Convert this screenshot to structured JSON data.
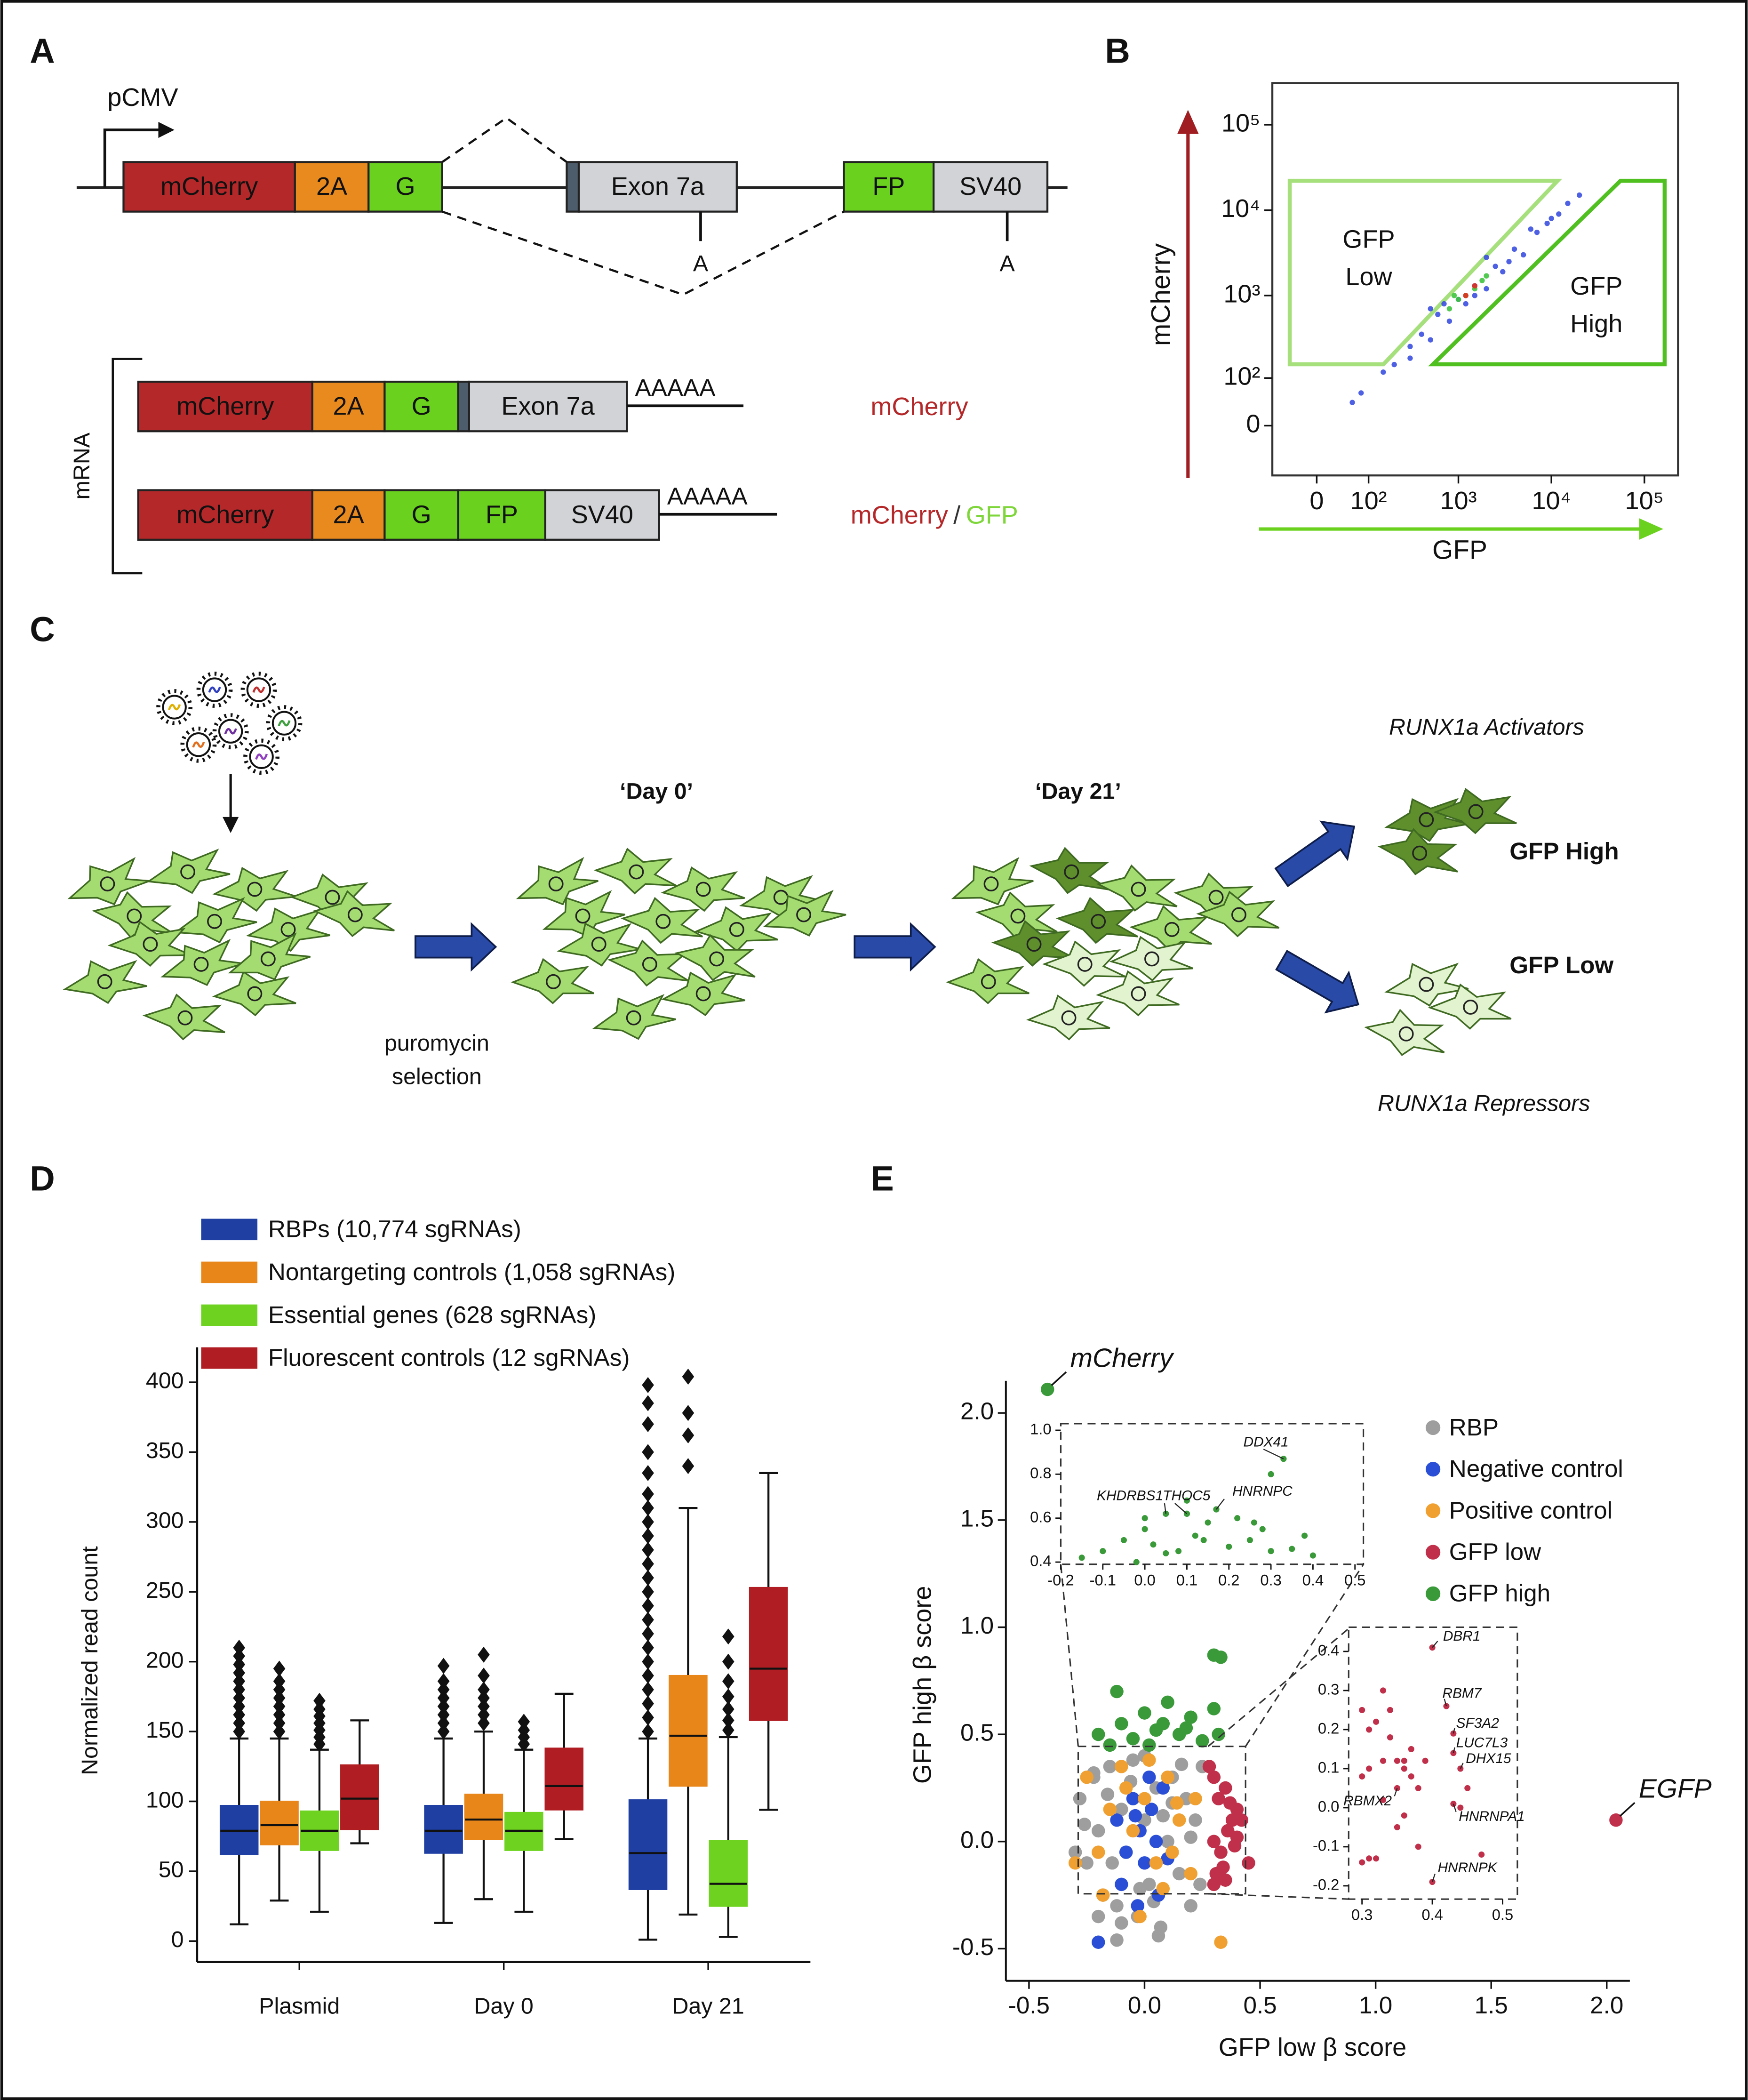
{
  "panel_labels": {
    "a": "A",
    "b": "B",
    "c": "C",
    "d": "D",
    "e": "E"
  },
  "construct": {
    "promoter": "pCMV",
    "segments": {
      "mcherry": "mCherry",
      "p2a": "2A",
      "g": "G",
      "exon": "Exon 7a",
      "fp": "FP",
      "sv40": "SV40"
    },
    "polya_sites": [
      "A",
      "A"
    ],
    "mrna_label": "mRNA",
    "isoforms": [
      {
        "segments": [
          "mCherry",
          "2A",
          "G",
          "Exon 7a"
        ],
        "tail": "AAAAA",
        "readout": [
          "mCherry"
        ]
      },
      {
        "segments": [
          "mCherry",
          "2A",
          "G",
          "FP",
          "SV40"
        ],
        "tail": "AAAAA",
        "readout": [
          "mCherry",
          "/",
          "GFP"
        ]
      }
    ]
  },
  "screen": {
    "day0": "‘Day 0’",
    "day21": "‘Day 21’",
    "selection": [
      "puromycin",
      "selection"
    ],
    "activators": "RUNX1a Activators",
    "gfp_high": "GFP High",
    "gfp_low": "GFP Low",
    "repressors": "RUNX1a Repressors"
  },
  "chart_data": [
    {
      "type": "scatter",
      "scale": "asinh",
      "xlabel": "GFP",
      "ylabel": "mCherry",
      "xlim": [
        -80,
        230000
      ],
      "ylim": [
        -107,
        308000
      ],
      "xticks": [
        0,
        {
          "value": 100,
          "label": "10²"
        },
        {
          "value": 1000,
          "label": "10³"
        },
        {
          "value": 10000,
          "label": "10⁴"
        },
        {
          "value": 100000,
          "label": "10⁵"
        }
      ],
      "yticks": [
        0,
        {
          "value": 100,
          "label": "10²"
        },
        {
          "value": 1000,
          "label": "10³"
        },
        {
          "value": 10000,
          "label": "10⁴"
        },
        {
          "value": 100000,
          "label": "10⁵"
        }
      ],
      "gates": [
        {
          "label": [
            "GFP",
            "Low"
          ]
        },
        {
          "label": [
            "GFP",
            "High"
          ]
        }
      ],
      "series": [
        {
          "color": "#3b4fe0",
          "x": [
            80,
            150,
            200,
            300,
            400,
            500,
            600,
            800,
            1000,
            1200,
            1500,
            2000,
            2500,
            3000,
            4000,
            5000,
            7000,
            9000,
            12000,
            15000,
            20000,
            300,
            700,
            1500,
            3500,
            6000,
            60,
            2000,
            500,
            10000
          ],
          "y": [
            60,
            120,
            150,
            250,
            350,
            300,
            600,
            500,
            900,
            800,
            1300,
            1200,
            2200,
            1900,
            3500,
            3000,
            5500,
            7000,
            9000,
            12000,
            15000,
            180,
            800,
            1000,
            2500,
            6000,
            40,
            2800,
            700,
            8000
          ]
        },
        {
          "color": "#3fc43f",
          "x": [
            800,
            1000,
            1200,
            1500,
            2000,
            900,
            1800
          ],
          "y": [
            700,
            900,
            1000,
            1200,
            1700,
            1000,
            1500
          ]
        },
        {
          "color": "#e0301e",
          "x": [
            1200,
            1500
          ],
          "y": [
            1000,
            1300
          ]
        }
      ]
    },
    {
      "type": "box",
      "ylabel": "Normalized read count",
      "categories": [
        "Plasmid",
        "Day 0",
        "Day 21"
      ],
      "ylim": [
        -15,
        425
      ],
      "yticks": [
        0,
        50,
        100,
        150,
        200,
        250,
        300,
        350,
        400
      ],
      "series": [
        {
          "name": "RBPs (10,774 sgRNAs)",
          "color": "#1f3fa3",
          "boxes": [
            {
              "whislo": 12,
              "q1": 62,
              "med": 79,
              "q3": 97,
              "whishi": 145,
              "fliers": [
                150,
                156,
                162,
                168,
                174,
                180,
                186,
                192,
                198,
                204,
                210
              ]
            },
            {
              "whislo": 13,
              "q1": 63,
              "med": 79,
              "q3": 97,
              "whishi": 145,
              "fliers": [
                150,
                156,
                162,
                168,
                174,
                180,
                186,
                197
              ]
            },
            {
              "whislo": 1,
              "q1": 37,
              "med": 63,
              "q3": 101,
              "whishi": 145,
              "fliers": [
                150,
                160,
                170,
                180,
                190,
                200,
                210,
                220,
                230,
                240,
                250,
                260,
                270,
                280,
                290,
                300,
                310,
                320,
                335,
                350,
                370,
                385,
                398
              ]
            }
          ]
        },
        {
          "name": "Nontargeting controls (1,058 sgRNAs)",
          "color": "#e8861a",
          "boxes": [
            {
              "whislo": 29,
              "q1": 69,
              "med": 83,
              "q3": 100,
              "whishi": 145,
              "fliers": [
                150,
                156,
                162,
                168,
                174,
                180,
                186,
                195
              ]
            },
            {
              "whislo": 30,
              "q1": 73,
              "med": 87,
              "q3": 105,
              "whishi": 150,
              "fliers": [
                156,
                162,
                168,
                174,
                180,
                190,
                205
              ]
            },
            {
              "whislo": 19,
              "q1": 111,
              "med": 147,
              "q3": 190,
              "whishi": 310,
              "fliers": [
                340,
                362,
                378,
                404
              ]
            }
          ]
        },
        {
          "name": "Essential genes (628 sgRNAs)",
          "color": "#6ed320",
          "boxes": [
            {
              "whislo": 21,
              "q1": 65,
              "med": 79,
              "q3": 93,
              "whishi": 137,
              "fliers": [
                141,
                146,
                151,
                156,
                161,
                166,
                172
              ]
            },
            {
              "whislo": 21,
              "q1": 65,
              "med": 79,
              "q3": 92,
              "whishi": 137,
              "fliers": [
                141,
                146,
                151,
                157
              ]
            },
            {
              "whislo": 3,
              "q1": 25,
              "med": 41,
              "q3": 72,
              "whishi": 146,
              "fliers": [
                151,
                158,
                166,
                175,
                186,
                200,
                218
              ]
            }
          ]
        },
        {
          "name": "Fluorescent controls (12 sgRNAs)",
          "color": "#b01e23",
          "boxes": [
            {
              "whislo": 70,
              "q1": 80,
              "med": 102,
              "q3": 126,
              "whishi": 158,
              "fliers": []
            },
            {
              "whislo": 73,
              "q1": 94,
              "med": 111,
              "q3": 138,
              "whishi": 177,
              "fliers": []
            },
            {
              "whislo": 94,
              "q1": 158,
              "med": 195,
              "q3": 253,
              "whishi": 335,
              "fliers": []
            }
          ]
        }
      ]
    },
    {
      "type": "scatter",
      "xlabel": "GFP low β score",
      "ylabel": "GFP high β score",
      "xlim": [
        -0.6,
        2.1
      ],
      "ylim": [
        -0.65,
        2.15
      ],
      "xticks": [
        -0.5,
        {
          "value": 0,
          "label": "0.0"
        },
        0.5,
        {
          "value": 1,
          "label": "1.0"
        },
        1.5,
        {
          "value": 2,
          "label": "2.0"
        }
      ],
      "yticks": [
        -0.5,
        {
          "value": 0,
          "label": "0.0"
        },
        0.5,
        {
          "value": 1,
          "label": "1.0"
        },
        1.5,
        {
          "value": 2,
          "label": "2.0"
        }
      ],
      "annotations": [
        {
          "text": "mCherry",
          "x": -0.42,
          "y": 2.11
        },
        {
          "text": "EGFP",
          "x": 2.04,
          "y": 0.1
        }
      ],
      "series": [
        {
          "name": "RBP",
          "color": "#9e9e9e",
          "x": [
            -0.28,
            -0.25,
            -0.22,
            -0.2,
            -0.18,
            -0.15,
            -0.12,
            -0.1,
            -0.08,
            -0.05,
            -0.03,
            0,
            0.02,
            0.05,
            0.07,
            0.1,
            0.12,
            0.15,
            0.18,
            0.2,
            0.22,
            0.25,
            -0.3,
            -0.26,
            -0.2,
            -0.14,
            -0.06,
            0.04,
            0.12,
            0.2,
            0.24,
            -0.1,
            0,
            0.08,
            -0.16,
            -0.02,
            0.16,
            -0.22,
            0.06,
            -0.12
          ],
          "y": [
            0.2,
            -0.1,
            0.3,
            0.05,
            -0.25,
            0.35,
            -0.3,
            0.15,
            -0.05,
            0.38,
            -0.35,
            0.1,
            -0.2,
            0.25,
            -0.4,
            0,
            0.3,
            -0.15,
            0.2,
            -0.3,
            0.1,
            0.35,
            -0.05,
            0.08,
            -0.35,
            -0.1,
            0.28,
            -0.28,
            0.18,
            0.02,
            -0.2,
            -0.38,
            0.4,
            0.12,
            0.22,
            -0.22,
            0.36,
            0.32,
            -0.44,
            -0.46
          ]
        },
        {
          "name": "Negative control",
          "color": "#2a4fd6",
          "x": [
            -0.12,
            -0.08,
            -0.05,
            -0.02,
            0,
            0.03,
            0.05,
            0.08,
            0.1,
            -0.1,
            0.02,
            0.06,
            -0.04,
            -0.2,
            -0.03
          ],
          "y": [
            0.1,
            -0.05,
            0.2,
            0.05,
            -0.1,
            0.15,
            0,
            0.25,
            -0.08,
            -0.2,
            0.3,
            -0.25,
            0.12,
            -0.47,
            -0.3
          ]
        },
        {
          "name": "Positive control",
          "color": "#f0a030",
          "x": [
            -0.25,
            -0.2,
            -0.15,
            -0.1,
            -0.05,
            0,
            0.05,
            0.1,
            0.15,
            0.2,
            -0.18,
            -0.08,
            0.02,
            0.12,
            -0.3,
            0.14,
            0.33,
            -0.02,
            0.08,
            0.22
          ],
          "y": [
            0.3,
            -0.05,
            0.15,
            0.35,
            0.05,
            0.2,
            -0.1,
            0.3,
            0.1,
            -0.15,
            -0.25,
            0.25,
            0.38,
            -0.05,
            -0.1,
            0.18,
            -0.47,
            -0.35,
            -0.22,
            0.2
          ]
        },
        {
          "name": "GFP low",
          "color": "#c0304a",
          "x": [
            0.3,
            0.32,
            0.35,
            0.38,
            0.4,
            0.3,
            0.33,
            0.36,
            0.42,
            0.45,
            0.31,
            0.34,
            0.37,
            0.4,
            0.28,
            0.3,
            0.35,
            0.39,
            2.04
          ],
          "y": [
            0.3,
            0.2,
            0.25,
            0.1,
            0.15,
            0,
            -0.05,
            0.05,
            0.1,
            -0.1,
            -0.15,
            -0.12,
            0.18,
            0.02,
            0.35,
            -0.2,
            -0.18,
            -0.02,
            0.1
          ]
        },
        {
          "name": "GFP high",
          "color": "#3a9a3a",
          "x": [
            -0.2,
            -0.15,
            -0.1,
            -0.05,
            0,
            0.05,
            0.1,
            0.15,
            0.2,
            0.25,
            0.3,
            -0.12,
            0.02,
            0.18,
            0.32,
            0.3,
            0.33,
            0.08,
            -0.42
          ],
          "y": [
            0.5,
            0.45,
            0.55,
            0.48,
            0.6,
            0.52,
            0.65,
            0.5,
            0.58,
            0.47,
            0.62,
            0.7,
            0.45,
            0.53,
            0.5,
            0.87,
            0.86,
            0.55,
            2.11
          ]
        }
      ]
    },
    {
      "type": "scatter",
      "xlim": [
        -0.2,
        0.52
      ],
      "ylim": [
        0.39,
        1.03
      ],
      "xticks": [
        -0.2,
        -0.1,
        {
          "value": 0,
          "label": "0.0"
        },
        0.1,
        0.2,
        0.3,
        0.4,
        0.5
      ],
      "yticks": [
        0.4,
        0.6,
        0.8,
        {
          "value": 1,
          "label": "1.0"
        }
      ],
      "labels": [
        {
          "text": "DDX41",
          "x": 0.33,
          "y": 0.87
        },
        {
          "text": "KHDRBS1",
          "x": 0.05,
          "y": 0.62
        },
        {
          "text": "THOC5",
          "x": 0.1,
          "y": 0.62
        },
        {
          "text": "HNRNPC",
          "x": 0.17,
          "y": 0.64
        }
      ],
      "series": [
        {
          "color": "#3a9a3a",
          "x": [
            -0.15,
            -0.1,
            -0.05,
            0,
            0.02,
            0.05,
            0.08,
            0.1,
            0.12,
            0.15,
            0.17,
            0.2,
            0.22,
            0.25,
            0.28,
            0.3,
            0.33,
            0.35,
            0.38,
            0.4,
            0.05,
            0.1,
            0.17,
            0.3,
            0,
            0.26,
            -0.02,
            0.14
          ],
          "y": [
            0.42,
            0.45,
            0.5,
            0.55,
            0.48,
            0.62,
            0.45,
            0.68,
            0.52,
            0.58,
            0.64,
            0.47,
            0.6,
            0.5,
            0.55,
            0.8,
            0.87,
            0.46,
            0.52,
            0.43,
            0.44,
            0.62,
            0.64,
            0.45,
            0.6,
            0.58,
            0.4,
            0.5
          ]
        }
      ]
    },
    {
      "type": "scatter",
      "xlim": [
        0.281,
        0.521
      ],
      "ylim": [
        -0.234,
        0.462
      ],
      "xticks": [
        0.3,
        0.4,
        0.5
      ],
      "yticks": [
        -0.2,
        -0.1,
        {
          "value": 0,
          "label": "0.0"
        },
        0.1,
        0.2,
        0.3,
        0.4
      ],
      "labels": [
        {
          "text": "DBR1",
          "x": 0.4,
          "y": 0.41
        },
        {
          "text": "RBM7",
          "x": 0.42,
          "y": 0.26
        },
        {
          "text": "SF3A2",
          "x": 0.43,
          "y": 0.19
        },
        {
          "text": "LUC7L3",
          "x": 0.43,
          "y": 0.14
        },
        {
          "text": "DHX15",
          "x": 0.44,
          "y": 0.1
        },
        {
          "text": "RBMX2",
          "x": 0.35,
          "y": 0.05
        },
        {
          "text": "HNRNPA1",
          "x": 0.43,
          "y": 0.01
        },
        {
          "text": "HNRNPK",
          "x": 0.4,
          "y": -0.19
        }
      ],
      "series": [
        {
          "color": "#c0304a",
          "x": [
            0.3,
            0.31,
            0.32,
            0.33,
            0.34,
            0.35,
            0.36,
            0.37,
            0.38,
            0.3,
            0.31,
            0.33,
            0.35,
            0.36,
            0.38,
            0.39,
            0.32,
            0.34,
            0.37,
            0.31,
            0.33,
            0.3,
            0.45,
            0.47,
            0.44,
            0.36
          ],
          "y": [
            0.25,
            0.2,
            0.22,
            0.3,
            0.18,
            0.12,
            0.1,
            0.15,
            0.05,
            0.08,
            -0.13,
            0.02,
            -0.05,
            0.12,
            -0.1,
            0.12,
            -0.13,
            0.25,
            0.08,
            0.1,
            0.12,
            -0.14,
            0.05,
            -0.12,
            0,
            -0.02
          ]
        }
      ]
    }
  ]
}
